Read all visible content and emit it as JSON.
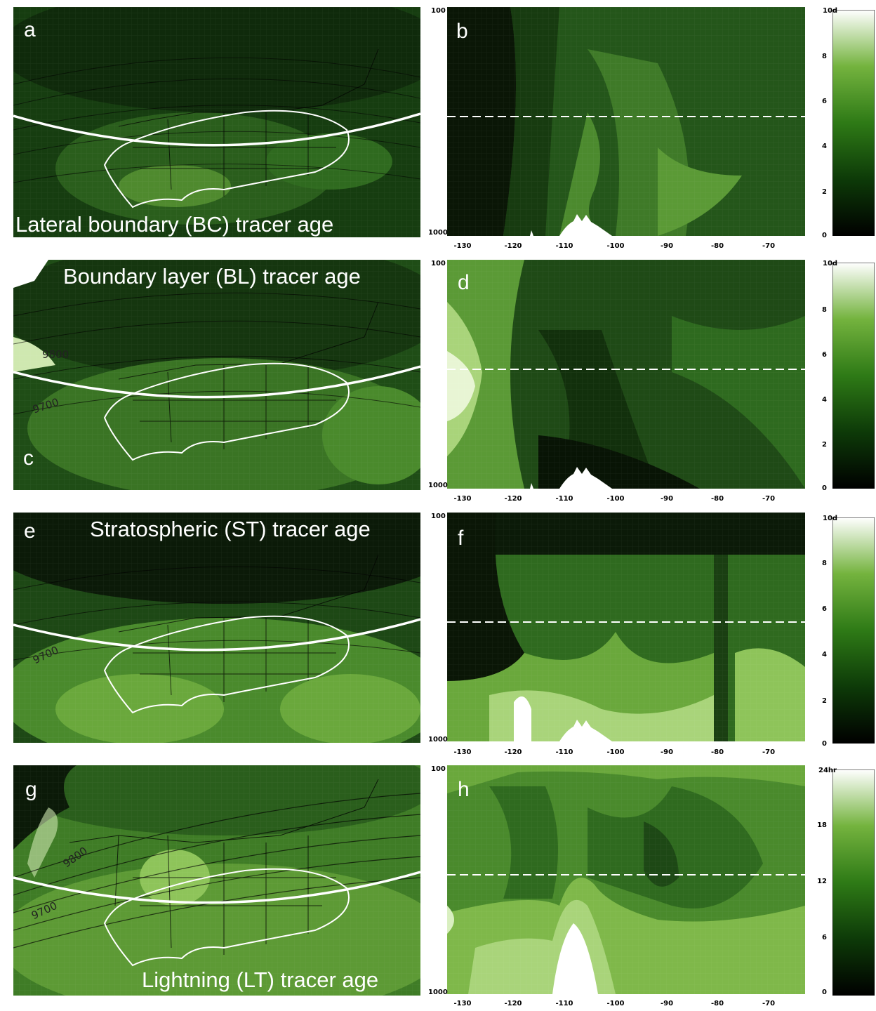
{
  "colors": {
    "dark": "#0a1a08",
    "mid": "#2f6b1f",
    "light": "#7fb84a",
    "pale": "#d9efc0",
    "white": "#ffffff"
  },
  "chart_data": [
    {
      "type": "heatmap",
      "panel": "a",
      "label": "a",
      "title": "Lateral boundary (BC) tracer age",
      "kind": "map"
    },
    {
      "type": "heatmap",
      "panel": "b",
      "label": "b",
      "kind": "cross-section",
      "xlabel": "",
      "ylabel": "",
      "x_ticks": [
        "-130",
        "-120",
        "-110",
        "-100",
        "-90",
        "-80",
        "-70"
      ],
      "y_top": "100",
      "y_bottom": "1000",
      "colorbar": {
        "top_label": "10d",
        "ticks": [
          "8",
          "6",
          "4",
          "2",
          "0"
        ]
      }
    },
    {
      "type": "heatmap",
      "panel": "c",
      "label": "c",
      "title": "Boundary layer (BL) tracer age",
      "kind": "map",
      "contour_labels": [
        "9700",
        "9800"
      ]
    },
    {
      "type": "heatmap",
      "panel": "d",
      "label": "d",
      "kind": "cross-section",
      "x_ticks": [
        "-130",
        "-120",
        "-110",
        "-100",
        "-90",
        "-80",
        "-70"
      ],
      "y_top": "100",
      "y_bottom": "1000",
      "colorbar": {
        "top_label": "10d",
        "ticks": [
          "8",
          "6",
          "4",
          "2",
          "0"
        ]
      }
    },
    {
      "type": "heatmap",
      "panel": "e",
      "label": "e",
      "title": "Stratospheric (ST) tracer age",
      "kind": "map",
      "contour_labels": [
        "9700"
      ]
    },
    {
      "type": "heatmap",
      "panel": "f",
      "label": "f",
      "kind": "cross-section",
      "x_ticks": [
        "-130",
        "-120",
        "-110",
        "-100",
        "-90",
        "-80",
        "-70"
      ],
      "y_top": "100",
      "y_bottom": "1000",
      "colorbar": {
        "top_label": "10d",
        "ticks": [
          "8",
          "6",
          "4",
          "2",
          "0"
        ]
      }
    },
    {
      "type": "heatmap",
      "panel": "g",
      "label": "g",
      "title": "Lightning (LT) tracer age",
      "kind": "map",
      "contour_labels": [
        "9800",
        "9700"
      ]
    },
    {
      "type": "heatmap",
      "panel": "h",
      "label": "h",
      "kind": "cross-section",
      "x_ticks": [
        "-130",
        "-120",
        "-110",
        "-100",
        "-90",
        "-80",
        "-70"
      ],
      "y_top": "100",
      "y_bottom": "1000",
      "colorbar": {
        "top_label": "24hr",
        "ticks": [
          "18",
          "12",
          "6",
          "0"
        ]
      }
    }
  ]
}
